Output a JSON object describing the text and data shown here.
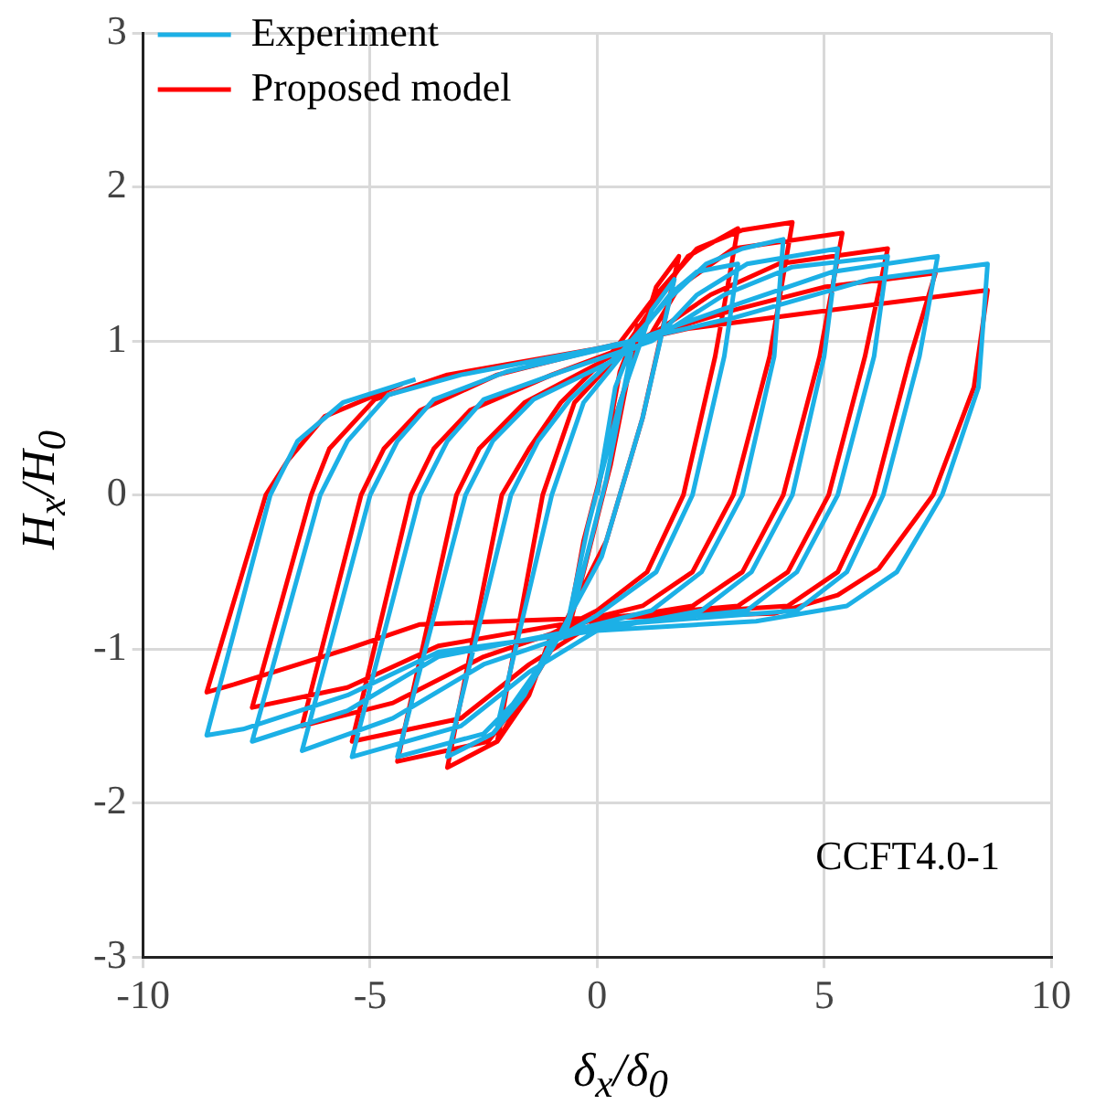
{
  "chart_data": {
    "type": "line",
    "xlabel": "δ$_{x}$/δ$_{0}$",
    "ylabel": "H$_{x}$/H$_{0}$",
    "xlim": [
      -10,
      10
    ],
    "xticks": [
      -10,
      -5,
      0,
      5,
      10
    ],
    "ylim": [
      -3,
      3
    ],
    "yticks": [
      -3,
      -2,
      -1,
      0,
      1,
      2,
      3
    ],
    "grid": true,
    "legend": "top left",
    "marker": "none",
    "line_style": "solid",
    "annotations": [
      "CCFT4.0-1"
    ],
    "series": [
      {
        "name": "Experiment",
        "color": "#1cb0e6",
        "type": "line",
        "x": [
          0,
          0.4,
          0.8,
          0.2,
          -0.4,
          -0.7,
          -0.2,
          0.5,
          1.2,
          1.7,
          1.0,
          0.1,
          -1.0,
          -2.2,
          -1.0,
          -0.3,
          0.8,
          1.6,
          2.2,
          3.1,
          2.8,
          2.1,
          1.3,
          0,
          -1.0,
          -1.6,
          -2.3,
          -3.3,
          -1.9,
          -1.3,
          -0.6,
          0.6,
          1.5,
          2.4,
          3.2,
          4.1,
          3.9,
          3.2,
          2.3,
          1.2,
          -0.8,
          -1.5,
          -2.5,
          -4.4,
          -2.9,
          -2.3,
          -1.4,
          0.2,
          1.4,
          2.2,
          3.3,
          5.3,
          5.0,
          4.3,
          3.4,
          2.3,
          0,
          -1.5,
          -3.0,
          -5.4,
          -3.9,
          -3.3,
          -2.5,
          -0.8,
          1.2,
          2.8,
          4.3,
          6.4,
          6.1,
          5.3,
          4.4,
          3.3,
          0,
          -2.5,
          -4.5,
          -6.5,
          -5.0,
          -4.4,
          -3.6,
          -2.0,
          0.6,
          3.2,
          5.2,
          7.5,
          7.1,
          6.3,
          5.5,
          4.4,
          0,
          -3.5,
          -5.5,
          -7.6,
          -6.1,
          -5.5,
          -4.6,
          -3.0,
          0,
          3.0,
          6.0,
          8.6,
          8.4,
          7.6,
          6.6,
          5.5,
          3.5,
          0,
          -3.5,
          -5.5,
          -7.8,
          -8.6,
          -7.2,
          -6.6,
          -5.6,
          -4.0
        ],
        "values": [
          0,
          0.7,
          1.0,
          0.1,
          -0.6,
          -0.9,
          -0.2,
          0.6,
          1.2,
          1.4,
          0.5,
          -0.4,
          -1.0,
          -1.5,
          0,
          0.6,
          1.0,
          1.3,
          1.45,
          1.5,
          0.9,
          0,
          -0.5,
          -0.78,
          -0.95,
          -1.3,
          -1.55,
          -1.7,
          0,
          0.35,
          0.62,
          0.95,
          1.25,
          1.5,
          1.6,
          1.66,
          0.9,
          0,
          -0.5,
          -0.75,
          -0.9,
          -1.25,
          -1.55,
          -1.7,
          0,
          0.35,
          0.62,
          0.85,
          1.05,
          1.3,
          1.5,
          1.6,
          0.9,
          0,
          -0.5,
          -0.75,
          -0.88,
          -1.15,
          -1.5,
          -1.7,
          0,
          0.35,
          0.62,
          0.8,
          1.0,
          1.3,
          1.48,
          1.55,
          0.9,
          0,
          -0.5,
          -0.75,
          -0.85,
          -1.1,
          -1.45,
          -1.66,
          0,
          0.35,
          0.62,
          0.8,
          0.98,
          1.25,
          1.45,
          1.55,
          0.9,
          0,
          -0.5,
          -0.75,
          -0.85,
          -1.05,
          -1.4,
          -1.6,
          0,
          0.35,
          0.65,
          0.78,
          0.95,
          1.15,
          1.4,
          1.5,
          0.7,
          0,
          -0.5,
          -0.72,
          -0.82,
          -0.88,
          -1.02,
          -1.3,
          -1.52,
          -1.56,
          0,
          0.35,
          0.6,
          0.75
        ]
      },
      {
        "name": "Proposed model",
        "color": "#ff0000",
        "type": "line",
        "x": [
          0,
          0.5,
          0.9,
          0.3,
          -0.3,
          -0.7,
          -0.3,
          0.4,
          1.3,
          1.8,
          1.0,
          0.2,
          -1.0,
          -2.2,
          -1.2,
          -0.5,
          0.6,
          1.4,
          2.0,
          3.1,
          2.6,
          1.9,
          1.1,
          0,
          -1.0,
          -1.5,
          -2.2,
          -3.3,
          -2.1,
          -1.5,
          -0.8,
          0.4,
          1.3,
          2.2,
          3.2,
          4.3,
          3.8,
          3.0,
          2.1,
          1.0,
          -0.8,
          -1.5,
          -2.4,
          -4.4,
          -3.1,
          -2.6,
          -1.6,
          0,
          1.2,
          1.8,
          3.0,
          5.4,
          4.9,
          4.1,
          3.2,
          2.1,
          0,
          -1.5,
          -3.0,
          -5.4,
          -4.1,
          -3.6,
          -2.8,
          -1.0,
          1.0,
          2.5,
          4.0,
          6.4,
          5.9,
          5.1,
          4.2,
          3.1,
          0,
          -2.5,
          -4.5,
          -6.5,
          -5.2,
          -4.7,
          -3.9,
          -2.2,
          0.5,
          3.0,
          5.0,
          7.45,
          6.9,
          6.1,
          5.3,
          4.2,
          0,
          -3.5,
          -5.5,
          -7.6,
          -6.3,
          -5.9,
          -4.9,
          -3.3,
          0,
          2.0,
          4.6,
          8.6,
          8.3,
          7.4,
          6.2,
          5.3,
          3.9,
          -0.3,
          -3.9,
          -5.5,
          -8.0,
          -8.6,
          -7.3,
          -6.8,
          -6.0,
          -4.3
        ],
        "values": [
          0,
          0.8,
          1.1,
          0.2,
          -0.5,
          -0.95,
          -0.3,
          0.5,
          1.35,
          1.55,
          0.5,
          -0.3,
          -1.0,
          -1.6,
          0,
          0.6,
          0.95,
          1.3,
          1.55,
          1.73,
          0.9,
          0,
          -0.5,
          -0.75,
          -0.9,
          -1.3,
          -1.6,
          -1.77,
          0,
          0.3,
          0.6,
          0.95,
          1.3,
          1.6,
          1.72,
          1.77,
          0.9,
          0,
          -0.5,
          -0.72,
          -0.85,
          -1.25,
          -1.6,
          -1.73,
          0,
          0.3,
          0.6,
          0.85,
          1.05,
          1.35,
          1.6,
          1.7,
          0.9,
          0,
          -0.5,
          -0.72,
          -0.82,
          -1.1,
          -1.45,
          -1.6,
          0,
          0.3,
          0.55,
          0.78,
          1.0,
          1.3,
          1.5,
          1.6,
          0.9,
          0,
          -0.5,
          -0.72,
          -0.8,
          -1.05,
          -1.35,
          -1.5,
          0,
          0.3,
          0.55,
          0.78,
          0.98,
          1.2,
          1.35,
          1.44,
          0.9,
          0,
          -0.5,
          -0.72,
          -0.8,
          -0.98,
          -1.25,
          -1.38,
          0,
          0.3,
          0.62,
          0.78,
          0.95,
          1.08,
          1.18,
          1.33,
          0.7,
          0,
          -0.48,
          -0.65,
          -0.77,
          -0.8,
          -0.84,
          -1.0,
          -1.23,
          -1.28,
          0,
          0.23,
          0.51,
          0.72
        ]
      }
    ]
  }
}
